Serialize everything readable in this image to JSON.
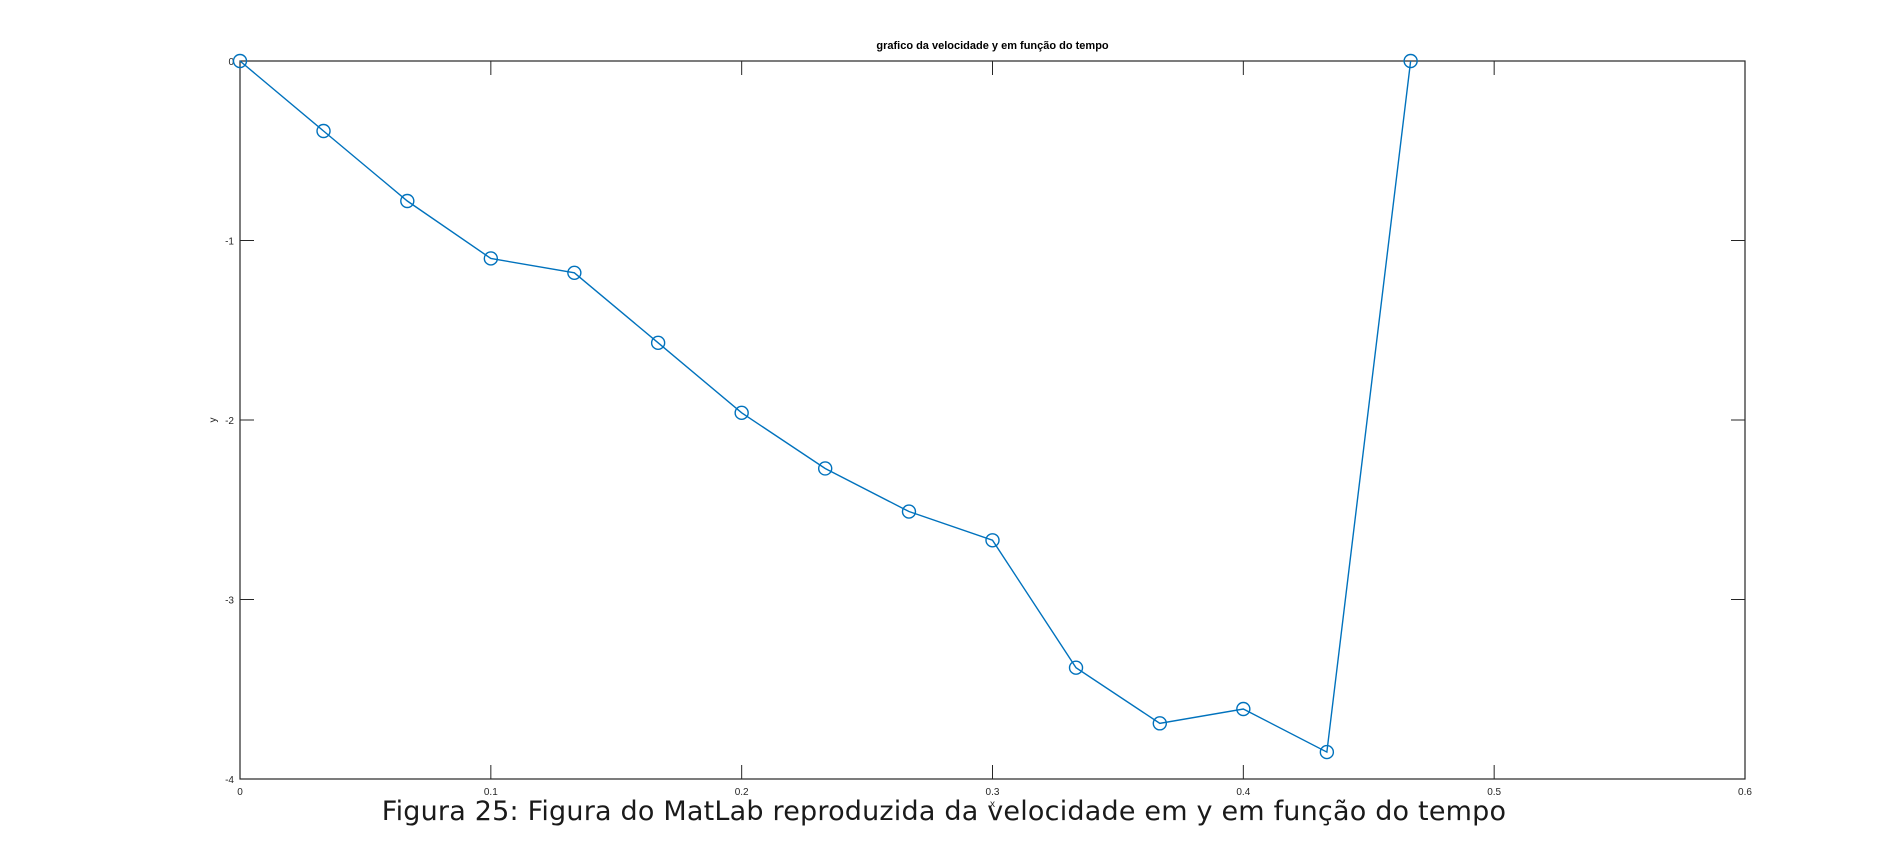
{
  "chart_data": {
    "type": "line",
    "title": "grafico da velocidade y em função do tempo",
    "xlabel": "x",
    "ylabel": "y",
    "xlim": [
      0,
      0.6
    ],
    "ylim": [
      -4,
      0
    ],
    "xticks": [
      "0",
      "0.1",
      "0.2",
      "0.3",
      "0.4",
      "0.5",
      "0.6"
    ],
    "yticks": [
      "0",
      "-1",
      "-2",
      "-3",
      "-4"
    ],
    "grid": false,
    "marker": "circle",
    "line_color": "#0072BD",
    "series": [
      {
        "x": [
          0,
          0.0333,
          0.0667,
          0.1,
          0.1333,
          0.1667,
          0.2,
          0.2333,
          0.2667,
          0.3,
          0.3333,
          0.3667,
          0.4,
          0.4333,
          0.4667
        ],
        "y": [
          0,
          -0.39,
          -0.78,
          -1.1,
          -1.18,
          -1.57,
          -1.96,
          -2.27,
          -2.51,
          -2.67,
          -3.38,
          -3.69,
          -3.61,
          -3.85,
          0
        ]
      }
    ]
  },
  "caption": "Figura 25: Figura do MatLab reproduzida da velocidade em y em função do tempo"
}
